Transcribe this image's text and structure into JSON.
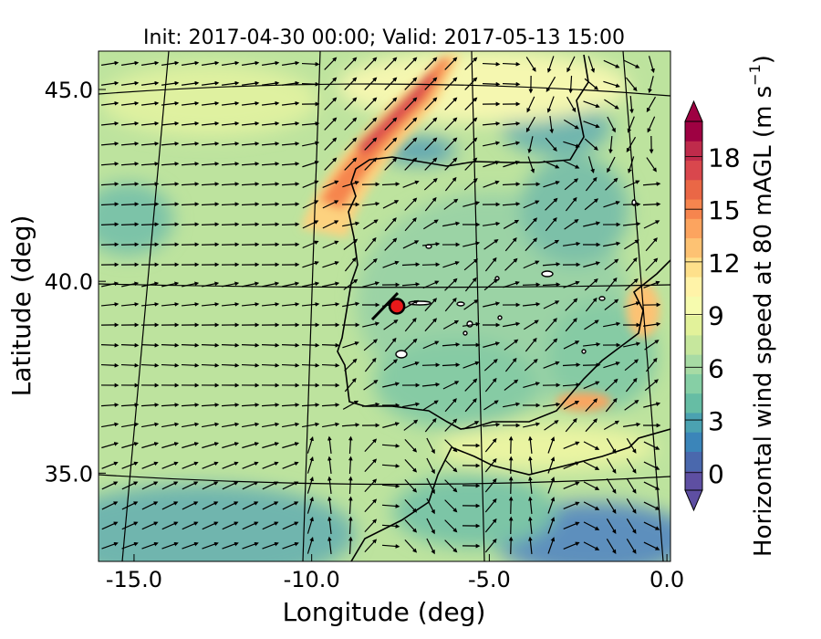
{
  "figure": {
    "title": "Init: 2017-04-30 00:00; Valid: 2017-05-13 15:00",
    "xlabel": "Longitude (deg)",
    "ylabel": "Latitude (deg)",
    "colorbar_label_main": "Horizontal wind speed at 80 mAGL (m s",
    "colorbar_label_exp": "−1",
    "colorbar_label_close": ")"
  },
  "axes": {
    "x_ticks": [
      {
        "value": -15.0,
        "label": "-15.0"
      },
      {
        "value": -10.0,
        "label": "-10.0"
      },
      {
        "value": -5.0,
        "label": "-5.0"
      },
      {
        "value": 0.0,
        "label": "0.0"
      }
    ],
    "y_ticks": [
      {
        "value": 35.0,
        "label": "35.0"
      },
      {
        "value": 40.0,
        "label": "40.0"
      },
      {
        "value": 45.0,
        "label": "45.0"
      }
    ],
    "xlim": [
      -16.0,
      0.1
    ],
    "ylim": [
      32.7,
      46.0
    ]
  },
  "colorbar": {
    "range": [
      -1.0,
      20.0
    ],
    "extend": "both",
    "ticks": [
      {
        "value": 0,
        "label": "0"
      },
      {
        "value": 3,
        "label": "3"
      },
      {
        "value": 6,
        "label": "6"
      },
      {
        "value": 9,
        "label": "9"
      },
      {
        "value": 12,
        "label": "12"
      },
      {
        "value": 15,
        "label": "15"
      },
      {
        "value": 18,
        "label": "18"
      }
    ],
    "colors": [
      "#5e4fa2",
      "#4a68ad",
      "#3b85b9",
      "#4ba2b1",
      "#66bda4",
      "#86cfa5",
      "#a7dba4",
      "#c6e79d",
      "#e2f29a",
      "#f6fbae",
      "#fff3a8",
      "#fee08b",
      "#fdc273",
      "#fca45f",
      "#f6854e",
      "#ea6746",
      "#d9474d",
      "#bf2b4b",
      "#9e0142"
    ]
  },
  "marker": {
    "lon": -7.6,
    "lat": 39.35,
    "color": "#e8191a"
  },
  "map": {
    "domain": "Iberian Peninsula and surrounding Atlantic",
    "field": "80 m wind speed with wind vectors",
    "features": [
      "coastlines",
      "lake outlines",
      "graticule lines"
    ]
  }
}
